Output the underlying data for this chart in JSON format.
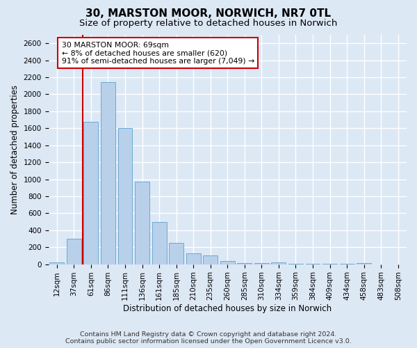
{
  "title": "30, MARSTON MOOR, NORWICH, NR7 0TL",
  "subtitle": "Size of property relative to detached houses in Norwich",
  "xlabel": "Distribution of detached houses by size in Norwich",
  "ylabel": "Number of detached properties",
  "footer1": "Contains HM Land Registry data © Crown copyright and database right 2024.",
  "footer2": "Contains public sector information licensed under the Open Government Licence v3.0.",
  "categories": [
    "12sqm",
    "37sqm",
    "61sqm",
    "86sqm",
    "111sqm",
    "136sqm",
    "161sqm",
    "185sqm",
    "210sqm",
    "235sqm",
    "260sqm",
    "285sqm",
    "310sqm",
    "334sqm",
    "359sqm",
    "384sqm",
    "409sqm",
    "434sqm",
    "458sqm",
    "483sqm",
    "508sqm"
  ],
  "values": [
    20,
    300,
    1680,
    2140,
    1600,
    970,
    500,
    250,
    125,
    100,
    40,
    15,
    10,
    18,
    5,
    5,
    5,
    3,
    15,
    0,
    0
  ],
  "bar_color": "#b8d0ea",
  "bar_edge_color": "#6aaad4",
  "vline_x": 1.5,
  "vline_color": "#cc0000",
  "annotation_text": "30 MARSTON MOOR: 69sqm\n← 8% of detached houses are smaller (620)\n91% of semi-detached houses are larger (7,049) →",
  "annotation_box_color": "#ffffff",
  "annotation_box_edge": "#cc0000",
  "ylim": [
    0,
    2700
  ],
  "yticks": [
    0,
    200,
    400,
    600,
    800,
    1000,
    1200,
    1400,
    1600,
    1800,
    2000,
    2200,
    2400,
    2600
  ],
  "bg_color": "#dde8f5",
  "axes_bg_color": "#dde8f5",
  "grid_color": "#ffffff",
  "title_fontsize": 11,
  "subtitle_fontsize": 9.5,
  "label_fontsize": 8.5,
  "tick_fontsize": 7.5,
  "footer_fontsize": 6.8
}
